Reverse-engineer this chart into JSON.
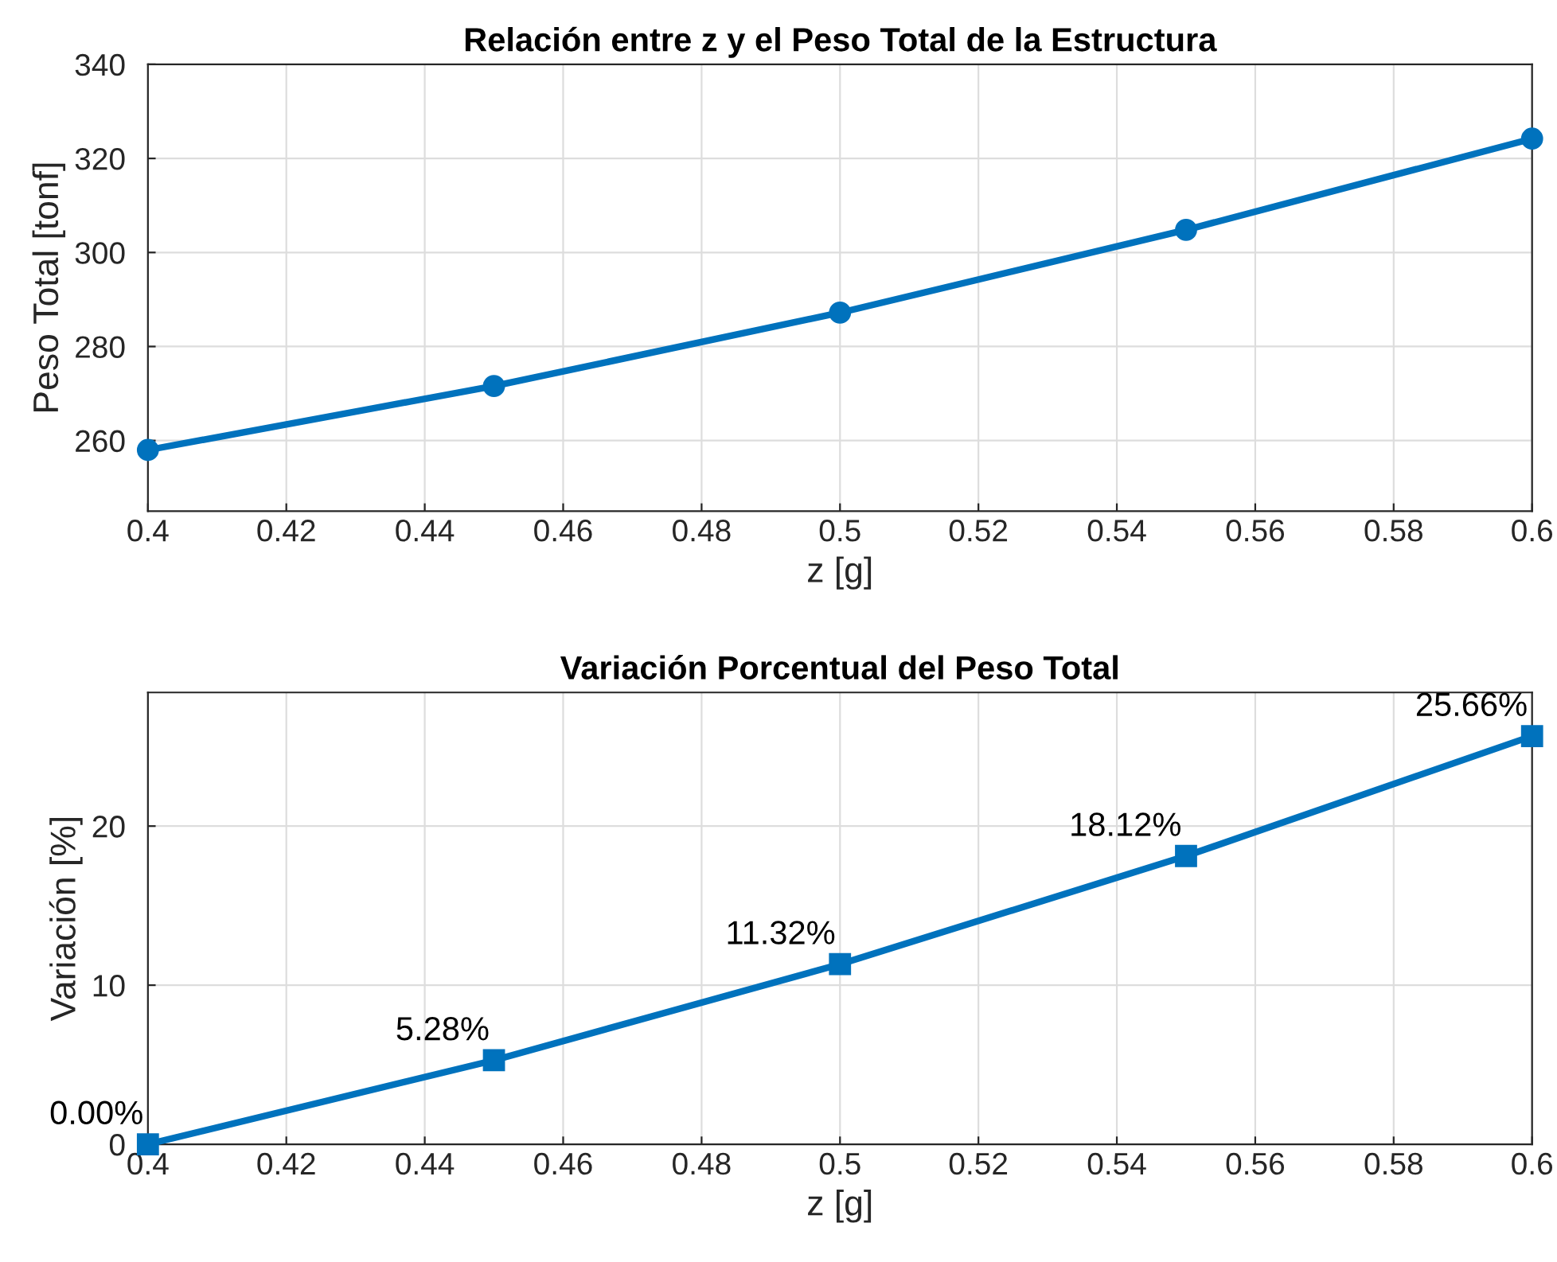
{
  "chart_data": [
    {
      "type": "line",
      "title": "Relación entre z y el Peso Total de la Estructura",
      "xlabel": "z [g]",
      "ylabel": "Peso Total [tonf]",
      "x": [
        0.4,
        0.45,
        0.5,
        0.55,
        0.6
      ],
      "series": [
        {
          "color": "#0072bd",
          "values": [
            258.0,
            271.6,
            287.2,
            304.8,
            324.2
          ]
        }
      ],
      "xlim": [
        0.4,
        0.6
      ],
      "xticks": [
        0.4,
        0.42,
        0.44,
        0.46,
        0.48,
        0.5,
        0.52,
        0.54,
        0.56,
        0.58,
        0.6
      ],
      "ylim": [
        245,
        340
      ],
      "yticks": [
        260,
        280,
        300,
        320,
        340
      ],
      "grid": true,
      "marker": "circle",
      "line_style": "solid"
    },
    {
      "type": "line",
      "title": "Variación Porcentual del Peso Total",
      "xlabel": "z [g]",
      "ylabel": "Variación [%]",
      "x": [
        0.4,
        0.45,
        0.5,
        0.55,
        0.6
      ],
      "series": [
        {
          "color": "#0072bd",
          "values": [
            0.0,
            5.28,
            11.32,
            18.12,
            25.66
          ]
        }
      ],
      "value_labels": [
        "0.00%",
        "5.28%",
        "11.32%",
        "18.12%",
        "25.66%"
      ],
      "xlim": [
        0.4,
        0.6
      ],
      "xticks": [
        0.4,
        0.42,
        0.44,
        0.46,
        0.48,
        0.5,
        0.52,
        0.54,
        0.56,
        0.58,
        0.6
      ],
      "ylim": [
        0,
        28.4
      ],
      "yticks": [
        0,
        10,
        20
      ],
      "grid": true,
      "marker": "square",
      "line_style": "solid"
    }
  ]
}
